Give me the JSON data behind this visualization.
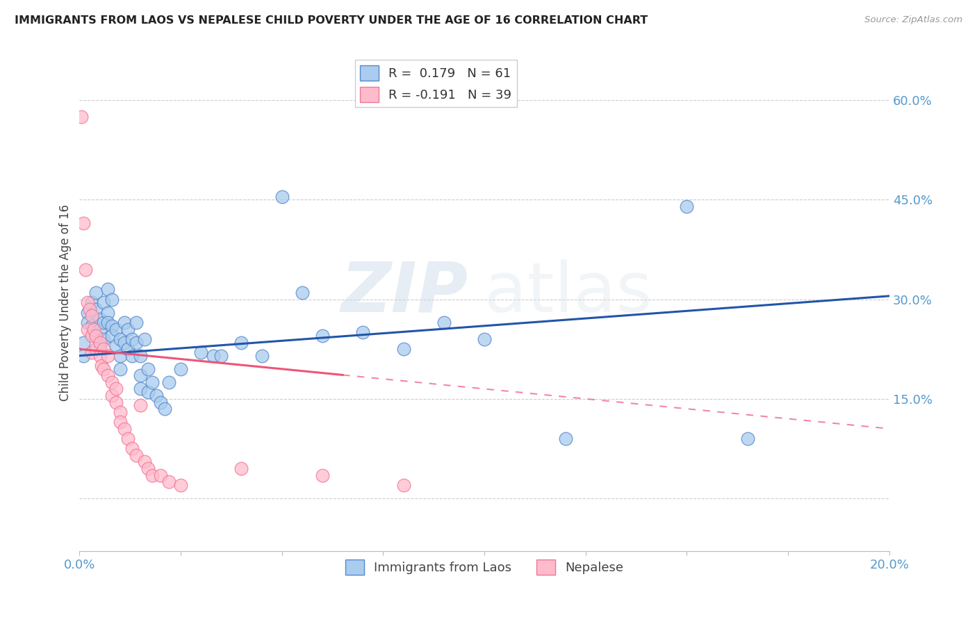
{
  "title": "IMMIGRANTS FROM LAOS VS NEPALESE CHILD POVERTY UNDER THE AGE OF 16 CORRELATION CHART",
  "source": "Source: ZipAtlas.com",
  "ylabel": "Child Poverty Under the Age of 16",
  "right_yticks": [
    0.0,
    0.15,
    0.3,
    0.45,
    0.6
  ],
  "right_yticklabels": [
    "",
    "15.0%",
    "30.0%",
    "45.0%",
    "60.0%"
  ],
  "xmin": 0.0,
  "xmax": 0.2,
  "ymin": -0.08,
  "ymax": 0.67,
  "r_blue": 0.179,
  "n_blue": 61,
  "r_pink": -0.191,
  "n_pink": 39,
  "blue_color": "#aaccee",
  "pink_color": "#ffbbcc",
  "blue_edge_color": "#5588cc",
  "pink_edge_color": "#ee7799",
  "blue_line_color": "#2255aa",
  "pink_line_color": "#ee5577",
  "legend_label_blue": "Immigrants from Laos",
  "legend_label_pink": "Nepalese",
  "blue_scatter": [
    [
      0.001,
      0.215
    ],
    [
      0.001,
      0.235
    ],
    [
      0.002,
      0.28
    ],
    [
      0.002,
      0.265
    ],
    [
      0.003,
      0.26
    ],
    [
      0.003,
      0.295
    ],
    [
      0.004,
      0.31
    ],
    [
      0.004,
      0.285
    ],
    [
      0.004,
      0.245
    ],
    [
      0.005,
      0.27
    ],
    [
      0.005,
      0.255
    ],
    [
      0.005,
      0.23
    ],
    [
      0.006,
      0.295
    ],
    [
      0.006,
      0.265
    ],
    [
      0.006,
      0.24
    ],
    [
      0.007,
      0.315
    ],
    [
      0.007,
      0.28
    ],
    [
      0.007,
      0.265
    ],
    [
      0.008,
      0.3
    ],
    [
      0.008,
      0.26
    ],
    [
      0.008,
      0.245
    ],
    [
      0.009,
      0.255
    ],
    [
      0.009,
      0.23
    ],
    [
      0.01,
      0.24
    ],
    [
      0.01,
      0.215
    ],
    [
      0.01,
      0.195
    ],
    [
      0.011,
      0.265
    ],
    [
      0.011,
      0.235
    ],
    [
      0.012,
      0.255
    ],
    [
      0.012,
      0.225
    ],
    [
      0.013,
      0.24
    ],
    [
      0.013,
      0.215
    ],
    [
      0.014,
      0.265
    ],
    [
      0.014,
      0.235
    ],
    [
      0.015,
      0.215
    ],
    [
      0.015,
      0.185
    ],
    [
      0.015,
      0.165
    ],
    [
      0.016,
      0.24
    ],
    [
      0.017,
      0.195
    ],
    [
      0.017,
      0.16
    ],
    [
      0.018,
      0.175
    ],
    [
      0.019,
      0.155
    ],
    [
      0.02,
      0.145
    ],
    [
      0.021,
      0.135
    ],
    [
      0.022,
      0.175
    ],
    [
      0.025,
      0.195
    ],
    [
      0.03,
      0.22
    ],
    [
      0.033,
      0.215
    ],
    [
      0.035,
      0.215
    ],
    [
      0.04,
      0.235
    ],
    [
      0.045,
      0.215
    ],
    [
      0.05,
      0.455
    ],
    [
      0.055,
      0.31
    ],
    [
      0.06,
      0.245
    ],
    [
      0.07,
      0.25
    ],
    [
      0.08,
      0.225
    ],
    [
      0.09,
      0.265
    ],
    [
      0.1,
      0.24
    ],
    [
      0.12,
      0.09
    ],
    [
      0.15,
      0.44
    ],
    [
      0.165,
      0.09
    ]
  ],
  "pink_scatter": [
    [
      0.0005,
      0.575
    ],
    [
      0.001,
      0.415
    ],
    [
      0.0015,
      0.345
    ],
    [
      0.002,
      0.295
    ],
    [
      0.002,
      0.255
    ],
    [
      0.0025,
      0.285
    ],
    [
      0.003,
      0.275
    ],
    [
      0.003,
      0.245
    ],
    [
      0.003,
      0.22
    ],
    [
      0.0035,
      0.255
    ],
    [
      0.004,
      0.245
    ],
    [
      0.004,
      0.225
    ],
    [
      0.005,
      0.235
    ],
    [
      0.005,
      0.215
    ],
    [
      0.0055,
      0.2
    ],
    [
      0.006,
      0.225
    ],
    [
      0.006,
      0.195
    ],
    [
      0.007,
      0.215
    ],
    [
      0.007,
      0.185
    ],
    [
      0.008,
      0.175
    ],
    [
      0.008,
      0.155
    ],
    [
      0.009,
      0.165
    ],
    [
      0.009,
      0.145
    ],
    [
      0.01,
      0.13
    ],
    [
      0.01,
      0.115
    ],
    [
      0.011,
      0.105
    ],
    [
      0.012,
      0.09
    ],
    [
      0.013,
      0.075
    ],
    [
      0.014,
      0.065
    ],
    [
      0.015,
      0.14
    ],
    [
      0.016,
      0.055
    ],
    [
      0.017,
      0.045
    ],
    [
      0.018,
      0.035
    ],
    [
      0.02,
      0.035
    ],
    [
      0.022,
      0.025
    ],
    [
      0.025,
      0.02
    ],
    [
      0.04,
      0.045
    ],
    [
      0.06,
      0.035
    ],
    [
      0.08,
      0.02
    ]
  ],
  "watermark_zip": "ZIP",
  "watermark_atlas": "atlas",
  "grid_color": "#cccccc",
  "bg_color": "#ffffff"
}
